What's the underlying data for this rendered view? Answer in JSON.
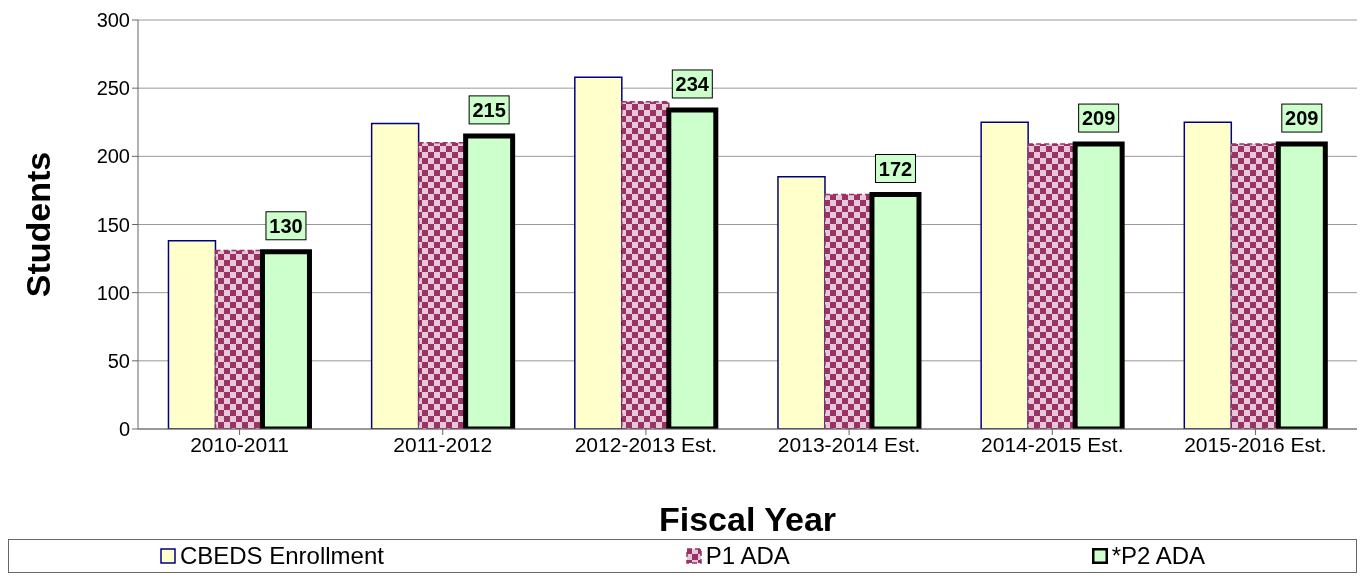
{
  "chart_data": {
    "type": "bar",
    "xlabel": "Fiscal Year",
    "ylabel": "Students",
    "categories": [
      "2010-2011",
      "2011-2012",
      "2012-2013 Est.",
      "2013-2014 Est.",
      "2014-2015 Est.",
      "2015-2016 Est."
    ],
    "series": [
      {
        "name": "CBEDS Enrollment",
        "color": "#ffffcc",
        "values": [
          138,
          224,
          258,
          185,
          225,
          225
        ]
      },
      {
        "name": "P1 ADA",
        "color": "#993366",
        "line_style": "dashed",
        "values": [
          131,
          210,
          240,
          172,
          209,
          209
        ]
      },
      {
        "name": "*P2 ADA",
        "color": "#ccffcc",
        "values": [
          130,
          215,
          234,
          172,
          209,
          209
        ],
        "value_labels": [
          "130",
          "215",
          "234",
          "172",
          "209",
          "209"
        ]
      }
    ],
    "ylim": [
      0,
      300
    ],
    "yticks": [
      0,
      50,
      100,
      150,
      200,
      250,
      300
    ],
    "grid": "y",
    "legend": "bottom"
  }
}
